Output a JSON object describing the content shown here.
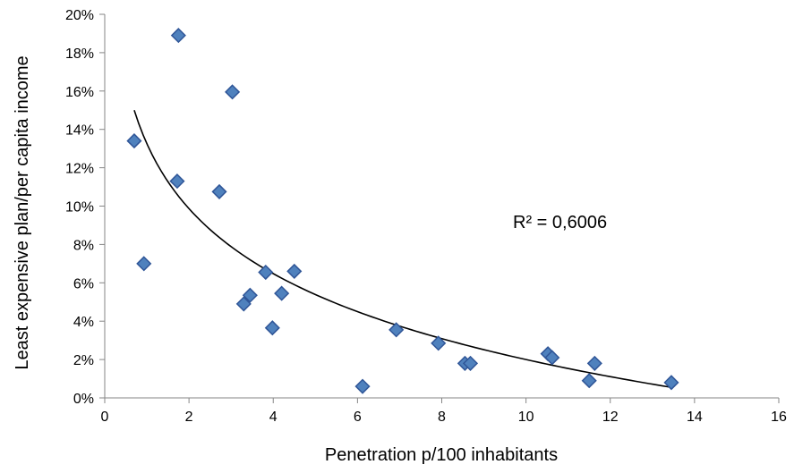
{
  "chart_data": {
    "type": "scatter",
    "title": "",
    "xlabel": "Penetration p/100 inhabitants",
    "ylabel": "Least expensive plan/per capita income",
    "xlim": [
      0,
      16
    ],
    "ylim": [
      0,
      20
    ],
    "x_ticks": [
      0,
      2,
      4,
      6,
      8,
      10,
      12,
      14,
      16
    ],
    "x_tick_labels": [
      "0",
      "2",
      "4",
      "6",
      "8",
      "10",
      "12",
      "14",
      "16"
    ],
    "y_ticks": [
      0,
      2,
      4,
      6,
      8,
      10,
      12,
      14,
      16,
      18,
      20
    ],
    "y_tick_labels": [
      "0%",
      "2%",
      "4%",
      "6%",
      "8%",
      "10%",
      "12%",
      "14%",
      "16%",
      "18%",
      "20%"
    ],
    "grid": false,
    "marker": "diamond",
    "marker_color": "#4F81BD",
    "marker_edge_color": "#2F5597",
    "trendline_color": "#000000",
    "points": [
      {
        "x": 0.7,
        "y": 13.4
      },
      {
        "x": 0.93,
        "y": 7.0
      },
      {
        "x": 1.75,
        "y": 18.9
      },
      {
        "x": 1.72,
        "y": 11.3
      },
      {
        "x": 2.72,
        "y": 10.75
      },
      {
        "x": 3.03,
        "y": 15.95
      },
      {
        "x": 3.3,
        "y": 4.9
      },
      {
        "x": 3.45,
        "y": 5.35
      },
      {
        "x": 3.82,
        "y": 6.55
      },
      {
        "x": 3.98,
        "y": 3.65
      },
      {
        "x": 4.2,
        "y": 5.45
      },
      {
        "x": 4.5,
        "y": 6.6
      },
      {
        "x": 6.12,
        "y": 0.6
      },
      {
        "x": 6.92,
        "y": 3.55
      },
      {
        "x": 7.92,
        "y": 2.85
      },
      {
        "x": 8.55,
        "y": 1.8
      },
      {
        "x": 8.68,
        "y": 1.8
      },
      {
        "x": 10.52,
        "y": 2.3
      },
      {
        "x": 10.62,
        "y": 2.1
      },
      {
        "x": 11.5,
        "y": 0.9
      },
      {
        "x": 11.63,
        "y": 1.8
      },
      {
        "x": 13.45,
        "y": 0.8
      }
    ],
    "trendline": {
      "type": "logarithmic",
      "x_start": 0.7,
      "x_end": 13.45,
      "y_start": 15.0,
      "y_end": 0.55,
      "r_squared_label": "R² = 0,6006"
    }
  }
}
